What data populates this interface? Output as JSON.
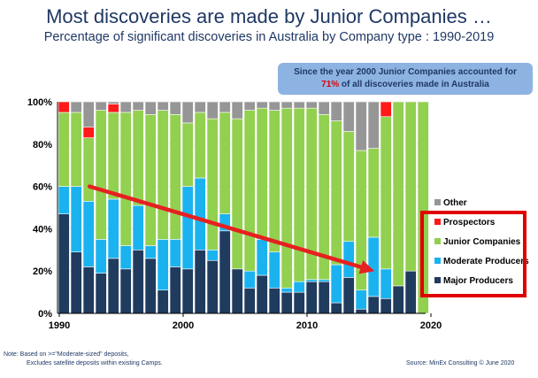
{
  "header": {
    "title": "Most discoveries are made by Junior Companies …",
    "subtitle": "Percentage of significant discoveries in Australia by Company type : 1990-2019"
  },
  "callout": {
    "line1": "Since the year 2000 Junior  Companies accounted for",
    "highlight": "71%",
    "line2_rest": " of all discoveries made in Australia",
    "background": "#8db3e2"
  },
  "footer": {
    "note_line1": "Note: Based on >=\"Moderate-sized\" deposits,",
    "note_line2": "Excludes satellite deposits within existing Camps.",
    "source": "Source: MinEx Consulting  © June 2020"
  },
  "chart_data": {
    "type": "bar",
    "stacked": true,
    "categories": [
      1990,
      1991,
      1992,
      1993,
      1994,
      1995,
      1996,
      1997,
      1998,
      1999,
      2000,
      2001,
      2002,
      2003,
      2004,
      2005,
      2006,
      2007,
      2008,
      2009,
      2010,
      2011,
      2012,
      2013,
      2014,
      2015,
      2016,
      2017,
      2018,
      2019
    ],
    "series": [
      {
        "name": "Major Producers",
        "color": "#1f3b5e",
        "values": [
          47,
          29,
          22,
          19,
          26,
          21,
          30,
          26,
          11,
          22,
          21,
          30,
          25,
          39,
          21,
          12,
          18,
          12,
          10,
          10,
          15,
          15,
          5,
          17,
          2,
          8,
          7,
          13,
          20,
          0
        ]
      },
      {
        "name": "Moderate Producers",
        "color": "#1ab3ef",
        "values": [
          13,
          31,
          31,
          16,
          28,
          11,
          21,
          6,
          24,
          13,
          39,
          34,
          5,
          8,
          0,
          8,
          17,
          17,
          2,
          5,
          1,
          1,
          18,
          17,
          9,
          28,
          14,
          0,
          0,
          0
        ]
      },
      {
        "name": "Junior Companies",
        "color": "#92d050",
        "values": [
          35,
          35,
          30,
          61,
          41,
          63,
          45,
          62,
          61,
          59,
          30,
          31,
          62,
          48,
          71,
          76,
          62,
          67,
          85,
          82,
          81,
          78,
          68,
          52,
          66,
          42,
          72,
          87,
          80,
          100
        ]
      },
      {
        "name": "Prospectors",
        "color": "#ff1a1a",
        "values": [
          5,
          0,
          5,
          0,
          4,
          0,
          0,
          0,
          0,
          0,
          0,
          0,
          0,
          0,
          0,
          0,
          0,
          0,
          0,
          0,
          0,
          0,
          0,
          0,
          0,
          0,
          7,
          0,
          0,
          0
        ]
      },
      {
        "name": "Other",
        "color": "#969696",
        "values": [
          0,
          5,
          12,
          4,
          1,
          5,
          4,
          6,
          4,
          6,
          10,
          5,
          8,
          5,
          8,
          4,
          3,
          4,
          3,
          3,
          3,
          6,
          9,
          14,
          23,
          22,
          0,
          0,
          0,
          0
        ]
      }
    ],
    "legend_order": [
      "Other",
      "Prospectors",
      "Junior Companies",
      "Moderate Producers",
      "Major Producers"
    ],
    "ylim": [
      0,
      100
    ],
    "y_ticks": [
      "0%",
      "20%",
      "40%",
      "60%",
      "80%",
      "100%"
    ],
    "x_ticks": [
      "1990",
      "2000",
      "2010",
      "2020"
    ],
    "x_tick_values": [
      1990,
      2000,
      2010,
      2020
    ],
    "xlim": [
      1990,
      2020
    ],
    "trend_arrow": {
      "color": "#e62020",
      "from": [
        1992,
        60
      ],
      "to": [
        2015,
        20
      ]
    },
    "legend_box_highlight_color": "#e00000",
    "legend_placement": "right"
  }
}
